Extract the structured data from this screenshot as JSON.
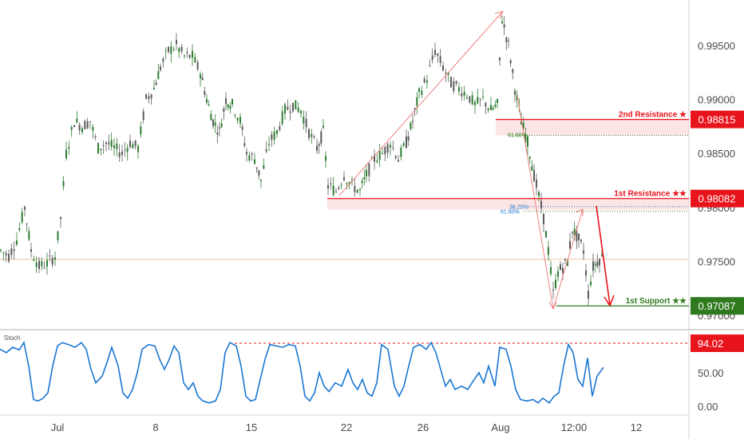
{
  "chart_data": {
    "type": "candlestick",
    "price_ticks": [
      0.995,
      0.99,
      0.985,
      0.98,
      0.975,
      0.97
    ],
    "price_tick_labels": [
      "0.99500",
      "0.99000",
      "0.98500",
      "0.98000",
      "0.97500",
      "0.97000"
    ],
    "ylim": [
      0.9688,
      0.9985
    ],
    "x_tick_labels": [
      "Jul",
      "8",
      "15",
      "22",
      "26",
      "Aug",
      "12:00",
      "12"
    ],
    "levels": [
      {
        "label": "2nd Resistance ★",
        "value": "0.98815",
        "price": 0.98815,
        "color": "#e8141c"
      },
      {
        "label": "1st Resistance ★★",
        "value": "0.98082",
        "price": 0.98082,
        "color": "#e8141c"
      },
      {
        "label": "1st Support ★★",
        "value": "0.97087",
        "price": 0.97087,
        "color": "#2f7a1f"
      }
    ],
    "fib_labels": [
      "61.80%",
      "38.20%",
      "61.80%"
    ],
    "reference_price": 0.9752,
    "stochastic": {
      "title": "Stoch",
      "tick_labels": [
        "50.00",
        "0.00"
      ],
      "ylim": [
        0,
        100
      ],
      "level": "94.02",
      "level_value": 94.02
    },
    "colors": {
      "bull": "#2e7d32",
      "bear": "#5a5a5a",
      "stoch_line": "#1976d2",
      "resistance": "#e8141c",
      "support": "#2f7a1f",
      "arrow": "#f08080"
    }
  }
}
